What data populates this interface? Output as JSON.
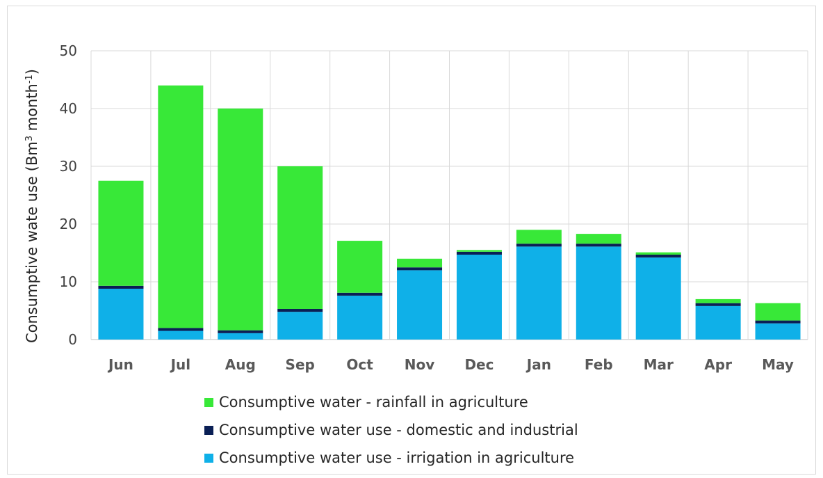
{
  "chart_data": {
    "type": "bar",
    "stacked": true,
    "categories": [
      "Jun",
      "Jul",
      "Aug",
      "Sep",
      "Oct",
      "Nov",
      "Dec",
      "Jan",
      "Feb",
      "Mar",
      "Apr",
      "May"
    ],
    "series": [
      {
        "name": "Consumptive water use - irrigation in agriculture",
        "color": "#0fb0e8",
        "values": [
          8.8,
          1.5,
          1.1,
          4.8,
          7.6,
          12.0,
          14.7,
          16.1,
          16.1,
          14.2,
          5.8,
          2.8
        ]
      },
      {
        "name": "Consumptive water use - domestic and industrial",
        "color": "#0a1f55",
        "values": [
          0.5,
          0.5,
          0.5,
          0.5,
          0.5,
          0.5,
          0.5,
          0.5,
          0.5,
          0.5,
          0.5,
          0.5
        ]
      },
      {
        "name": "Consumptive water - rainfall in agriculture",
        "color": "#38e838",
        "values": [
          18.2,
          42.0,
          38.4,
          24.7,
          9.0,
          1.5,
          0.3,
          2.4,
          1.7,
          0.4,
          0.7,
          3.0
        ]
      }
    ],
    "ylabel_main": "Consumptive wate use ",
    "ylabel_unit_prefix": "(Bm",
    "ylabel_sup1": "3",
    "ylabel_unit_mid": "  month",
    "ylabel_sup2": "-1",
    "ylabel_unit_suffix": ")",
    "ylim": [
      0,
      50
    ],
    "yticks": [
      0,
      10,
      20,
      30,
      40,
      50
    ],
    "grid": true,
    "legend_position": "bottom",
    "legend_order": [
      "Consumptive water - rainfall in agriculture",
      "Consumptive water use - domestic and industrial",
      "Consumptive water use - irrigation in agriculture"
    ]
  }
}
